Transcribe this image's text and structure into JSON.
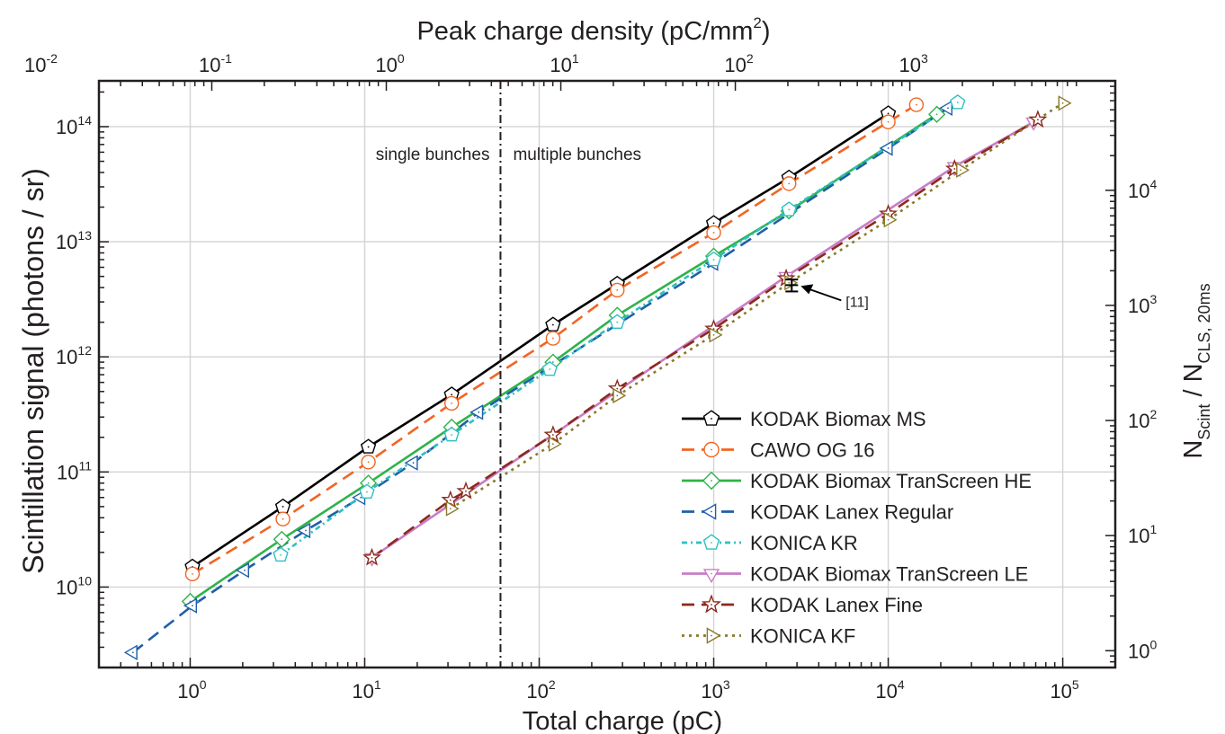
{
  "chart_data": {
    "type": "scatter",
    "xlabel": "Total charge (pC)",
    "ylabel": "Scintillation signal (photons / sr)",
    "top_axis_label": {
      "base": "Peak charge density (pC/mm",
      "sup": "2",
      "end": ")"
    },
    "right_axis_label": {
      "n1": "N",
      "s1": "Scint",
      "sep": " / ",
      "n2": "N",
      "s2": "CLS, 20ms"
    },
    "x_scale": "log",
    "y_scale": "log",
    "xlim": [
      0.3,
      200000
    ],
    "ylim": [
      2000000000.0,
      250000000000000.0
    ],
    "x_tick_labels": [
      {
        "base": "10",
        "exp": "0",
        "value": 1
      },
      {
        "base": "10",
        "exp": "1",
        "value": 10
      },
      {
        "base": "10",
        "exp": "2",
        "value": 100
      },
      {
        "base": "10",
        "exp": "3",
        "value": 1000
      },
      {
        "base": "10",
        "exp": "4",
        "value": 10000
      },
      {
        "base": "10",
        "exp": "5",
        "value": 100000
      }
    ],
    "y_tick_labels": [
      {
        "base": "10",
        "exp": "10",
        "value": 10000000000.0
      },
      {
        "base": "10",
        "exp": "11",
        "value": 100000000000.0
      },
      {
        "base": "10",
        "exp": "12",
        "value": 1000000000000.0
      },
      {
        "base": "10",
        "exp": "13",
        "value": 10000000000000.0
      },
      {
        "base": "10",
        "exp": "14",
        "value": 100000000000000.0
      }
    ],
    "top_tick_labels": [
      {
        "base": "10",
        "exp": "-2",
        "value": 0.01
      },
      {
        "base": "10",
        "exp": "-1",
        "value": 0.1
      },
      {
        "base": "10",
        "exp": "0",
        "value": 1
      },
      {
        "base": "10",
        "exp": "1",
        "value": 10
      },
      {
        "base": "10",
        "exp": "2",
        "value": 100
      },
      {
        "base": "10",
        "exp": "3",
        "value": 1000
      }
    ],
    "top_axis_pC_per_density": 13.3,
    "right_tick_labels": [
      {
        "base": "10",
        "exp": "0",
        "value": 1
      },
      {
        "base": "10",
        "exp": "1",
        "value": 10
      },
      {
        "base": "10",
        "exp": "2",
        "value": 100
      },
      {
        "base": "10",
        "exp": "3",
        "value": 1000
      },
      {
        "base": "10",
        "exp": "4",
        "value": 10000
      }
    ],
    "right_axis_signal_per_unit": 2800000000.0,
    "grid": true,
    "legend_position": "bottom-right",
    "annotations": {
      "single": "single bunches",
      "multiple": "multiple bunches",
      "divider_x": 60,
      "ref_label": "[11]",
      "ref_point": {
        "x": 2800,
        "y": 4200000000000.0,
        "y_low": 3700000000000.0,
        "y_high": 4700000000000.0
      }
    },
    "series": [
      {
        "name": "KODAK Biomax MS",
        "color": "#000000",
        "dash": "",
        "marker": "pentagon",
        "x": [
          1.03,
          3.4,
          10.5,
          31.5,
          120,
          280,
          1000,
          2700,
          10000
        ],
        "y": [
          15000000000.0,
          50000000000.0,
          165000000000.0,
          470000000000.0,
          1900000000000.0,
          4300000000000.0,
          14500000000000.0,
          36000000000000.0,
          130000000000000.0
        ]
      },
      {
        "name": "CAWO OG 16",
        "color": "#f26522",
        "dash": "14 8",
        "marker": "circle",
        "x": [
          1.03,
          3.4,
          10.5,
          31.5,
          120,
          280,
          1000,
          2700,
          10000,
          14500
        ],
        "y": [
          13000000000.0,
          39000000000.0,
          122000000000.0,
          395000000000.0,
          1450000000000.0,
          3800000000000.0,
          12000000000000.0,
          32000000000000.0,
          110000000000000.0,
          155000000000000.0
        ]
      },
      {
        "name": "KODAK Biomax TranScreen HE",
        "color": "#2fb34a",
        "dash": "",
        "marker": "diamond",
        "x": [
          1.0,
          3.35,
          10.5,
          31.5,
          120,
          280,
          1000,
          2700,
          19000
        ],
        "y": [
          7500000000.0,
          26000000000.0,
          80000000000.0,
          245000000000.0,
          900000000000.0,
          2300000000000.0,
          7500000000000.0,
          18500000000000.0,
          128000000000000.0
        ]
      },
      {
        "name": "KODAK Lanex Regular",
        "color": "#1f5fa8",
        "dash": "14 8",
        "marker": "triangle-left",
        "x": [
          0.47,
          1.03,
          2.05,
          4.6,
          9.5,
          19,
          45,
          1000,
          10000,
          22000
        ],
        "y": [
          2700000000.0,
          6900000000.0,
          14000000000.0,
          31000000000.0,
          60000000000.0,
          120000000000.0,
          330000000000.0,
          6500000000000.0,
          65000000000000.0,
          145000000000000.0
        ]
      },
      {
        "name": "KONICA KR",
        "color": "#2ebfc3",
        "dash": "6 4 2 4",
        "marker": "pentagon",
        "x": [
          3.3,
          10.3,
          31.5,
          115,
          280,
          1000,
          2700,
          25000
        ],
        "y": [
          19000000000.0,
          67000000000.0,
          210000000000.0,
          780000000000.0,
          2000000000000.0,
          7000000000000.0,
          19000000000000.0,
          162000000000000.0
        ]
      },
      {
        "name": "KODAK Biomax TranScreen LE",
        "color": "#c87dc6",
        "dash": "",
        "marker": "triangle-down",
        "x": [
          11,
          2600,
          24000,
          68000
        ],
        "y": [
          18000000000.0,
          5000000000000.0,
          45000000000000.0,
          110000000000000.0
        ]
      },
      {
        "name": "KODAK Lanex Fine",
        "color": "#8b2a1c",
        "dash": "14 8",
        "marker": "star",
        "x": [
          11,
          31,
          38,
          120,
          280,
          1000,
          2600,
          10000,
          24000,
          72000
        ],
        "y": [
          18000000000.0,
          57000000000.0,
          68000000000.0,
          210000000000.0,
          530000000000.0,
          1750000000000.0,
          4800000000000.0,
          17500000000000.0,
          43000000000000.0,
          115000000000000.0
        ]
      },
      {
        "name": "KONICA KF",
        "color": "#8a7a2a",
        "dash": "3 5",
        "marker": "triangle-right",
        "x": [
          31,
          120,
          280,
          1000,
          2700,
          10000,
          26000,
          100000
        ],
        "y": [
          48000000000.0,
          175000000000.0,
          460000000000.0,
          1550000000000.0,
          4400000000000.0,
          15500000000000.0,
          42000000000000.0,
          160000000000000.0
        ]
      }
    ]
  }
}
